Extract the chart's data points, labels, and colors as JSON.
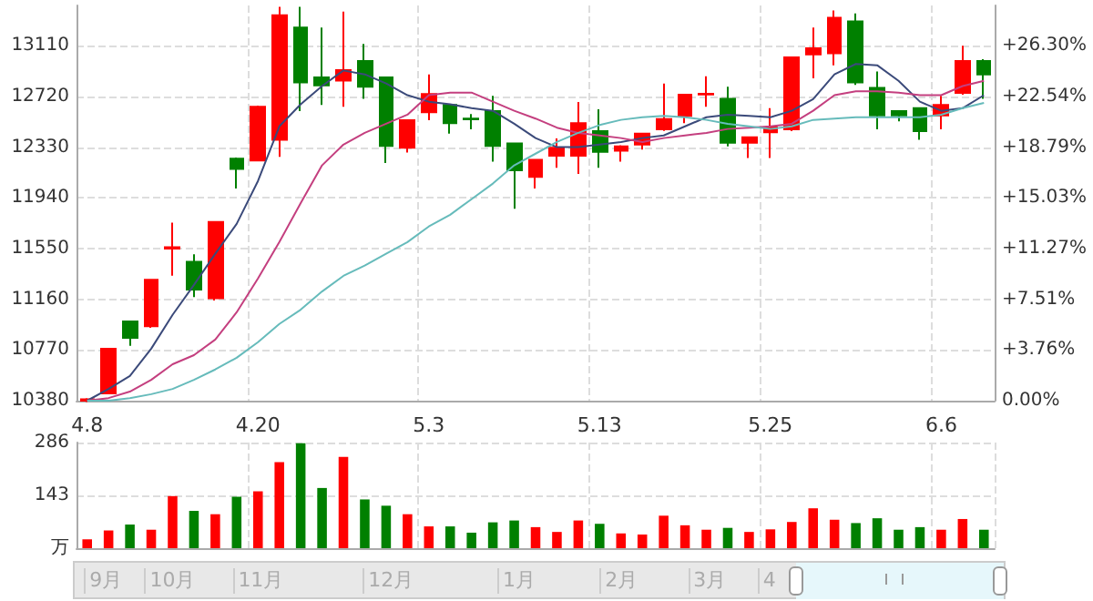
{
  "chart_data": [
    {
      "type": "candlestick",
      "categories": [
        "4.8",
        null,
        null,
        null,
        null,
        null,
        null,
        null,
        "4.20",
        null,
        null,
        null,
        null,
        null,
        null,
        null,
        "5.3",
        null,
        null,
        null,
        null,
        null,
        null,
        null,
        "5.13",
        null,
        null,
        null,
        null,
        null,
        null,
        null,
        "5.25",
        null,
        null,
        null,
        null,
        null,
        null,
        null,
        "6.6",
        null,
        null
      ],
      "ylim": [
        10380,
        13420
      ],
      "yticks": [
        10380,
        10770,
        11160,
        11550,
        11940,
        12330,
        12720,
        13110
      ],
      "y2lim": [
        0,
        29.29
      ],
      "y2ticks": [
        {
          "value": 0,
          "label": "0.00%"
        },
        {
          "value": 3.76,
          "label": "+3.76%"
        },
        {
          "value": 7.51,
          "label": "+7.51%"
        },
        {
          "value": 11.27,
          "label": "+11.27%"
        },
        {
          "value": 15.03,
          "label": "+15.03%"
        },
        {
          "value": 18.79,
          "label": "+18.79%"
        },
        {
          "value": 22.54,
          "label": "+22.54%"
        },
        {
          "value": 26.3,
          "label": "+26.30%"
        }
      ],
      "grid": true,
      "marker": "none",
      "series": [
        {
          "type": "candlestick",
          "ohlc": [
            [
              10380,
              10400,
              10370,
              10390
            ],
            [
              10436,
              10780,
              10430,
              10779
            ],
            [
              10990,
              10995,
              10802,
              10863
            ],
            [
              10952,
              11315,
              10940,
              11309
            ],
            [
              11550,
              11749,
              11341,
              11560
            ],
            [
              11449,
              11506,
              11177,
              11234
            ],
            [
              11168,
              11760,
              11150,
              11754
            ],
            [
              12242,
              12250,
              12012,
              12162
            ],
            [
              12228,
              12650,
              12220,
              12641
            ],
            [
              12387,
              13410,
              12256,
              13344
            ],
            [
              13250,
              13410,
              12608,
              12828
            ],
            [
              12866,
              13250,
              12655,
              12805
            ],
            [
              12842,
              13372,
              12641,
              12922
            ],
            [
              12992,
              13124,
              12702,
              12795
            ],
            [
              12866,
              12870,
              12209,
              12340
            ],
            [
              12326,
              12545,
              12289,
              12537
            ],
            [
              12598,
              12889,
              12537,
              12739
            ],
            [
              12655,
              12660,
              12434,
              12514
            ],
            [
              12550,
              12584,
              12467,
              12545
            ],
            [
              12608,
              12725,
              12219,
              12340
            ],
            [
              12359,
              12365,
              11857,
              12153
            ],
            [
              12101,
              12240,
              12012,
              12233
            ],
            [
              12265,
              12397,
              12172,
              12326
            ],
            [
              12265,
              12678,
              12125,
              12514
            ],
            [
              12453,
              12622,
              12172,
              12294
            ],
            [
              12303,
              12345,
              12219,
              12336
            ],
            [
              12350,
              12440,
              12312,
              12434
            ],
            [
              12467,
              12819,
              12455,
              12547
            ],
            [
              12570,
              12740,
              12514,
              12734
            ],
            [
              12735,
              12875,
              12641,
              12740
            ],
            [
              12702,
              12795,
              12336,
              12364
            ],
            [
              12364,
              12410,
              12247,
              12406
            ],
            [
              12444,
              12631,
              12247,
              12481
            ],
            [
              12467,
              13025,
              12453,
              13020
            ],
            [
              13044,
              13250,
              12859,
              13091
            ],
            [
              13053,
              13382,
              12960,
              13325
            ],
            [
              13297,
              13358,
              12809,
              12828
            ],
            [
              12786,
              12913,
              12467,
              12575
            ],
            [
              12608,
              12612,
              12528,
              12575
            ],
            [
              12631,
              12635,
              12387,
              12453
            ],
            [
              12575,
              12725,
              12467,
              12655
            ],
            [
              12748,
              13110,
              12734,
              12992
            ],
            [
              12992,
              13006,
              12702,
              12889
            ]
          ],
          "colors": [
            "#ff0000",
            "#ff0000",
            "#008000",
            "#ff0000",
            "#ff0000",
            "#008000",
            "#ff0000",
            "#008000",
            "#ff0000",
            "#ff0000",
            "#008000",
            "#008000",
            "#ff0000",
            "#008000",
            "#008000",
            "#ff0000",
            "#ff0000",
            "#008000",
            "#008000",
            "#008000",
            "#008000",
            "#ff0000",
            "#ff0000",
            "#ff0000",
            "#008000",
            "#ff0000",
            "#ff0000",
            "#ff0000",
            "#ff0000",
            "#ff0000",
            "#008000",
            "#ff0000",
            "#ff0000",
            "#ff0000",
            "#ff0000",
            "#ff0000",
            "#008000",
            "#008000",
            "#008000",
            "#008000",
            "#ff0000",
            "#ff0000",
            "#008000"
          ]
        },
        {
          "type": "line",
          "color": "#3b4a7a",
          "values": [
            10380,
            10470,
            10570,
            10780,
            11040,
            11270,
            11510,
            11740,
            12070,
            12490,
            12660,
            12800,
            12920,
            12890,
            12820,
            12730,
            12680,
            12660,
            12630,
            12610,
            12510,
            12400,
            12330,
            12330,
            12350,
            12370,
            12400,
            12420,
            12490,
            12560,
            12580,
            12570,
            12560,
            12610,
            12700,
            12890,
            12970,
            12960,
            12840,
            12680,
            12610,
            12630,
            12730
          ]
        },
        {
          "type": "line",
          "color": "#c43f7f",
          "values": [
            10380,
            10400,
            10450,
            10540,
            10660,
            10730,
            10850,
            11060,
            11320,
            11600,
            11900,
            12190,
            12350,
            12440,
            12510,
            12580,
            12730,
            12750,
            12750,
            12680,
            12610,
            12550,
            12480,
            12440,
            12420,
            12400,
            12370,
            12400,
            12420,
            12440,
            12470,
            12480,
            12490,
            12510,
            12610,
            12730,
            12760,
            12760,
            12750,
            12730,
            12730,
            12800,
            12840
          ]
        },
        {
          "type": "line",
          "color": "#66bbbb",
          "values": [
            10380,
            10380,
            10400,
            10430,
            10470,
            10540,
            10620,
            10710,
            10830,
            10970,
            11080,
            11220,
            11340,
            11420,
            11510,
            11600,
            11720,
            11810,
            11930,
            12050,
            12190,
            12280,
            12370,
            12440,
            12500,
            12540,
            12560,
            12570,
            12560,
            12540,
            12510,
            12490,
            12470,
            12490,
            12540,
            12550,
            12560,
            12560,
            12560,
            12560,
            12580,
            12630,
            12670
          ]
        }
      ]
    },
    {
      "type": "bar",
      "categories": [
        "4.8",
        null,
        null,
        null,
        null,
        null,
        null,
        null,
        "4.20",
        null,
        null,
        null,
        null,
        null,
        null,
        null,
        "5.3",
        null,
        null,
        null,
        null,
        null,
        null,
        null,
        "5.13",
        null,
        null,
        null,
        null,
        null,
        null,
        null,
        "5.25",
        null,
        null,
        null,
        null,
        null,
        null,
        null,
        "6.6",
        null,
        null
      ],
      "tick_labels": "y",
      "grid": true,
      "ylim": [
        0,
        286
      ],
      "yticks": [
        {
          "value": 0,
          "label": "万"
        },
        143,
        286
      ],
      "values": [
        24,
        48,
        64,
        50,
        141,
        101,
        92,
        139,
        154,
        233,
        284,
        163,
        247,
        132,
        115,
        92,
        59,
        59,
        42,
        70,
        75,
        57,
        44,
        75,
        66,
        40,
        37,
        88,
        62,
        50,
        55,
        44,
        51,
        71,
        108,
        77,
        68,
        81,
        50,
        57,
        50,
        79,
        50
      ],
      "colors": [
        "#ff0000",
        "#ff0000",
        "#008000",
        "#ff0000",
        "#ff0000",
        "#008000",
        "#ff0000",
        "#008000",
        "#ff0000",
        "#ff0000",
        "#008000",
        "#008000",
        "#ff0000",
        "#008000",
        "#008000",
        "#ff0000",
        "#ff0000",
        "#008000",
        "#008000",
        "#008000",
        "#008000",
        "#ff0000",
        "#ff0000",
        "#ff0000",
        "#008000",
        "#ff0000",
        "#ff0000",
        "#ff0000",
        "#ff0000",
        "#ff0000",
        "#008000",
        "#ff0000",
        "#ff0000",
        "#ff0000",
        "#ff0000",
        "#ff0000",
        "#008000",
        "#008000",
        "#008000",
        "#008000",
        "#ff0000",
        "#ff0000",
        "#008000"
      ],
      "annotations": [
        "9月",
        "10月",
        "11月",
        "12月",
        "1月",
        "2月",
        "3月",
        "4"
      ]
    }
  ]
}
